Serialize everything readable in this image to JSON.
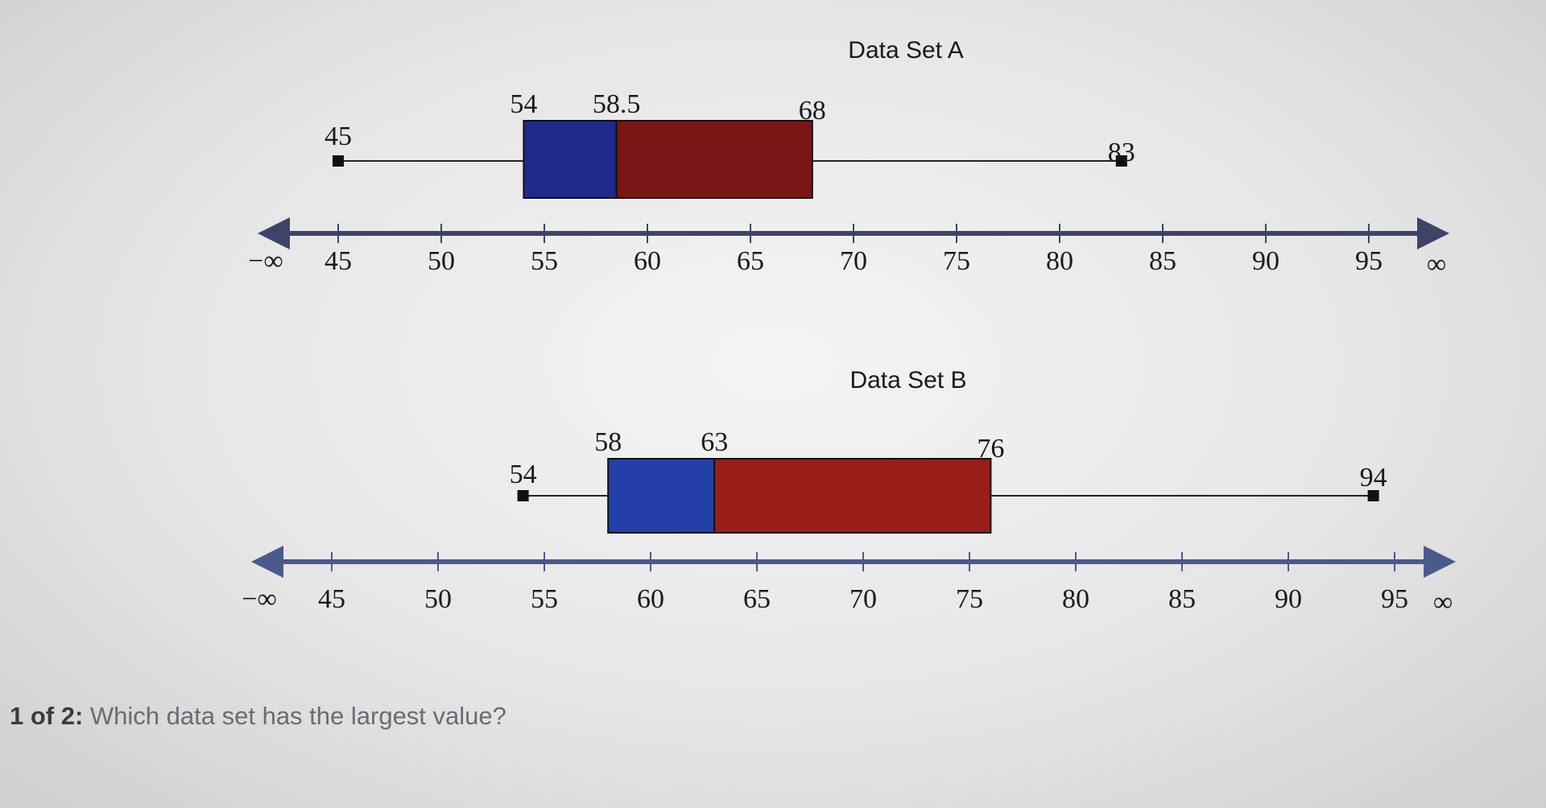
{
  "chart_data": [
    {
      "type": "boxplot",
      "title": "Data Set A",
      "min": 45,
      "q1": 54,
      "median": 58.5,
      "q3": 68,
      "max": 83,
      "labels": [
        "45",
        "54",
        "58.5",
        "68",
        "83"
      ],
      "axis": {
        "ticks": [
          45,
          50,
          55,
          60,
          65,
          70,
          75,
          80,
          85,
          90,
          95
        ],
        "left_label": "−∞",
        "right_label": "∞"
      },
      "colors": {
        "lower_box": "#1f2a8c",
        "upper_box": "#7a1616",
        "axis": "#3d4468"
      }
    },
    {
      "type": "boxplot",
      "title": "Data Set B",
      "min": 54,
      "q1": 58,
      "median": 63,
      "q3": 76,
      "max": 94,
      "labels": [
        "54",
        "58",
        "63",
        "76",
        "94"
      ],
      "axis": {
        "ticks": [
          45,
          50,
          55,
          60,
          65,
          70,
          75,
          80,
          85,
          90,
          95
        ],
        "left_label": "−∞",
        "right_label": "∞"
      },
      "colors": {
        "lower_box": "#2240a8",
        "upper_box": "#9a1e18",
        "axis": "#4a5a8c"
      }
    }
  ],
  "question": {
    "number": "1 of 2:",
    "text": "Which data set has the largest value?"
  }
}
